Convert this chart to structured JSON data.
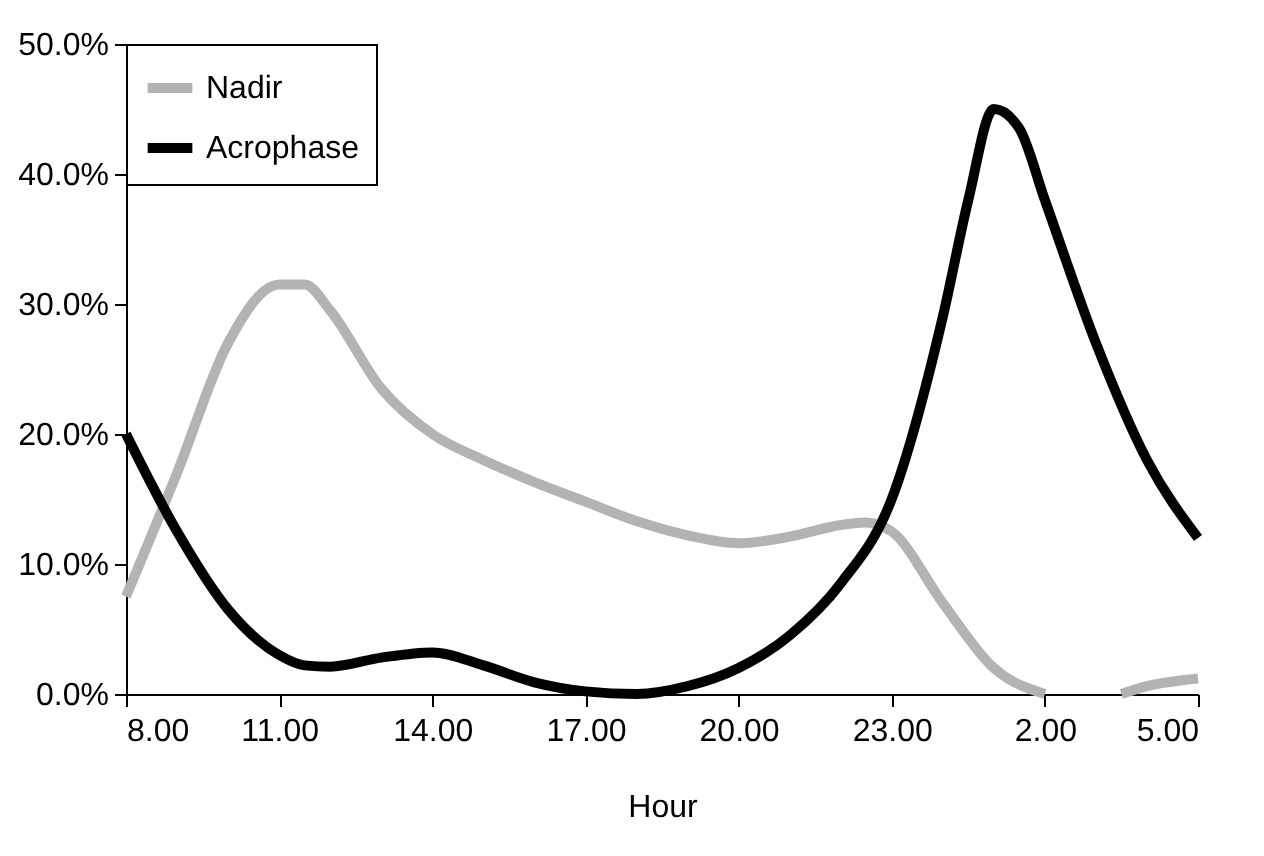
{
  "chart_data": {
    "type": "line",
    "xlabel": "Hour",
    "xlim": [
      "--01-01T08:00",
      "--01-02T05:00"
    ],
    "xticks": [
      {
        "value": "--01-01T08:00",
        "label": "8.00"
      },
      {
        "value": "--01-01T11:00",
        "label": "11.00"
      },
      {
        "value": "--01-01T14:00",
        "label": "14.00"
      },
      {
        "value": "--01-01T17:00",
        "label": "17.00"
      },
      {
        "value": "--01-01T20:00",
        "label": "20.00"
      },
      {
        "value": "--01-01T23:00",
        "label": "23.00"
      },
      {
        "value": "--01-02T02:00",
        "label": "2.00"
      },
      {
        "value": "--01-02T05:00",
        "label": "5.00"
      }
    ],
    "ylim": [
      0,
      50
    ],
    "yticks": [
      {
        "value": 0,
        "label": "0.0%"
      },
      {
        "value": 10,
        "label": "10.0%"
      },
      {
        "value": 20,
        "label": "20.0%"
      },
      {
        "value": 30,
        "label": "30.0%"
      },
      {
        "value": 40,
        "label": "40.0%"
      },
      {
        "value": 50,
        "label": "50.0%"
      }
    ],
    "grid": false,
    "legend": "top left",
    "marker": "none",
    "line_style": "solid",
    "series": [
      {
        "name": "Nadir",
        "color": "#b3b3b3",
        "x": [
          "--01-01T08:00",
          "--01-01T09:00",
          "--01-01T10:00",
          "--01-01T11:00",
          "--01-01T11:30",
          "--01-01T12:00",
          "--01-01T13:00",
          "--01-01T14:00",
          "--01-01T15:00",
          "--01-01T16:00",
          "--01-01T17:00",
          "--01-01T18:00",
          "--01-01T19:00",
          "--01-01T20:00",
          "--01-01T21:00",
          "--01-01T22:00",
          "--01-01T22:30",
          "--01-01T23:00",
          "--01-02T00:00",
          "--01-02T01:00",
          "--01-02T02:00",
          "--01-02T02:45",
          "--01-02T03:30",
          "--01-02T04:00",
          "--01-02T05:00"
        ],
        "values": [
          7.5,
          17,
          27,
          31.5,
          31.5,
          29.5,
          23.5,
          20,
          18,
          16.3,
          14.8,
          13.3,
          12.2,
          11.6,
          12.1,
          13,
          13.2,
          12.5,
          7,
          2,
          0,
          null,
          0,
          0.6,
          1.2
        ]
      },
      {
        "name": "Acrophase",
        "color": "#000000",
        "x": [
          "--01-01T08:00",
          "--01-01T09:00",
          "--01-01T10:00",
          "--01-01T11:00",
          "--01-01T11:30",
          "--01-01T12:00",
          "--01-01T13:00",
          "--01-01T14:00",
          "--01-01T15:00",
          "--01-01T16:00",
          "--01-01T17:00",
          "--01-01T18:00",
          "--01-01T19:00",
          "--01-01T20:00",
          "--01-01T21:00",
          "--01-01T22:00",
          "--01-01T23:00",
          "--01-02T00:00",
          "--01-02T00:30",
          "--01-02T01:00",
          "--01-02T01:30",
          "--01-02T02:00",
          "--01-02T03:00",
          "--01-02T04:00",
          "--01-02T05:00"
        ],
        "values": [
          20,
          12.5,
          6.5,
          3,
          2.2,
          2.1,
          2.8,
          3.2,
          2.2,
          0.9,
          0.2,
          0,
          0.6,
          2,
          4.5,
          8.5,
          15,
          29,
          38,
          45,
          43.5,
          38,
          27,
          18,
          12
        ]
      }
    ]
  }
}
